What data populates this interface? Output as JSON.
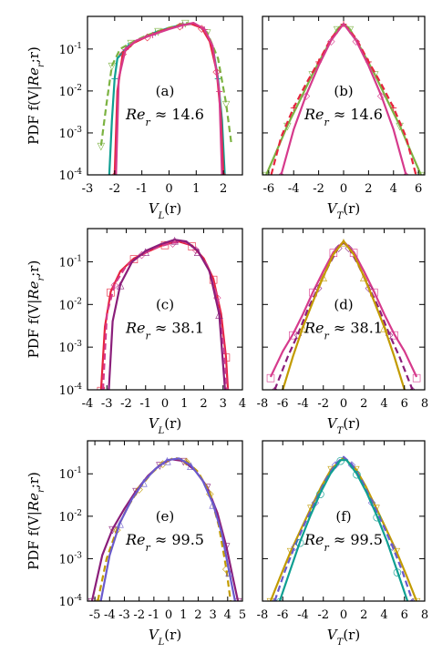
{
  "chart_data": {
    "type": "line",
    "shared_ylabel": "PDF f(V|Re_r;r)",
    "yscale": "log",
    "ylim": [
      0.0001,
      0.6
    ],
    "yticks": [
      {
        "value": 0.1,
        "base": "10",
        "exp": "-1"
      },
      {
        "value": 0.01,
        "base": "10",
        "exp": "-2"
      },
      {
        "value": 0.001,
        "base": "10",
        "exp": "-3"
      },
      {
        "value": 0.0001,
        "base": "10",
        "exp": "-4"
      }
    ],
    "series_colors": [
      "#0f9f92",
      "#7cb342",
      "#e6243e",
      "#d63a8c",
      "#8b1e7a",
      "#c29b00",
      "#6a5acd"
    ],
    "panels": [
      {
        "id": "a",
        "label": "(a)",
        "re": "14.6",
        "xlabel": "V_L(r)",
        "xlim": [
          -3,
          2.7
        ],
        "xticks": [
          -3,
          -2,
          -1,
          0,
          1,
          2
        ],
        "tick_labels": [
          "-3",
          "-2",
          "-1",
          "0",
          "1",
          "2"
        ],
        "marker_symbols": [
          "+",
          "▽",
          "◇"
        ],
        "curves": [
          {
            "x": [
              -2.2,
              -2.1,
              -2.0,
              -1.9,
              -1.5,
              -1.0,
              -0.5,
              0.0,
              0.5,
              0.9,
              1.3,
              1.6,
              1.8,
              1.95,
              2.05
            ],
            "y": [
              0.0001,
              0.002,
              0.02,
              0.06,
              0.12,
              0.18,
              0.25,
              0.32,
              0.38,
              0.4,
              0.3,
              0.12,
              0.02,
              0.002,
              0.0001
            ]
          },
          {
            "x": [
              -2.5,
              -2.3,
              -2.1,
              -1.8,
              -1.4,
              -0.9,
              -0.4,
              0.2,
              0.6,
              1.0,
              1.4,
              1.8,
              2.1,
              2.3
            ],
            "y": [
              0.0005,
              0.005,
              0.04,
              0.1,
              0.14,
              0.2,
              0.27,
              0.35,
              0.42,
              0.38,
              0.25,
              0.06,
              0.005,
              0.0005
            ]
          },
          {
            "x": [
              -2.0,
              -1.9,
              -1.7,
              -1.3,
              -0.8,
              -0.2,
              0.4,
              0.8,
              1.2,
              1.5,
              1.75,
              1.9,
              2.0
            ],
            "y": [
              0.0001,
              0.01,
              0.08,
              0.14,
              0.2,
              0.28,
              0.36,
              0.4,
              0.32,
              0.15,
              0.03,
              0.003,
              0.0001
            ]
          },
          {
            "x": [
              -1.95,
              -1.85,
              -1.6,
              -1.2,
              -0.6,
              0.0,
              0.5,
              0.9,
              1.3,
              1.6,
              1.85,
              1.95
            ],
            "y": [
              0.0001,
              0.02,
              0.1,
              0.16,
              0.22,
              0.3,
              0.37,
              0.42,
              0.3,
              0.12,
              0.01,
              0.0001
            ]
          }
        ]
      },
      {
        "id": "b",
        "label": "(b)",
        "re": "14.6",
        "xlabel": "V_T(r)",
        "xlim": [
          -6.5,
          6.5
        ],
        "xticks": [
          -6,
          -4,
          -2,
          0,
          2,
          4,
          6
        ],
        "tick_labels": [
          "-6",
          "-4",
          "-2",
          "0",
          "2",
          "4",
          "6"
        ],
        "marker_symbols": [
          "▽",
          "+",
          "◇"
        ],
        "curves": [
          {
            "x": [
              -6.2,
              -5.5,
              -4.5,
              -3.5,
              -2.5,
              -1.5,
              -0.5,
              0.0,
              0.5,
              1.5,
              2.5,
              3.5,
              4.5,
              5.5,
              6.2
            ],
            "y": [
              0.0001,
              0.0003,
              0.0015,
              0.006,
              0.025,
              0.09,
              0.3,
              0.4,
              0.3,
              0.09,
              0.025,
              0.006,
              0.0015,
              0.0003,
              0.0001
            ]
          },
          {
            "x": [
              -5.8,
              -5.0,
              -4.0,
              -3.0,
              -2.0,
              -1.0,
              0.0,
              1.0,
              2.0,
              3.0,
              4.0,
              5.0,
              5.8
            ],
            "y": [
              0.0001,
              0.0008,
              0.004,
              0.015,
              0.05,
              0.18,
              0.4,
              0.18,
              0.05,
              0.015,
              0.004,
              0.0008,
              0.0001
            ]
          },
          {
            "x": [
              -5.0,
              -4.0,
              -3.0,
              -2.0,
              -1.0,
              0.0,
              1.0,
              2.0,
              3.0,
              4.0,
              5.0
            ],
            "y": [
              0.0001,
              0.0012,
              0.008,
              0.04,
              0.16,
              0.4,
              0.16,
              0.04,
              0.008,
              0.0012,
              0.0001
            ]
          }
        ]
      },
      {
        "id": "c",
        "label": "(c)",
        "re": "38.1",
        "xlabel": "V_L(r)",
        "xlim": [
          -4,
          4
        ],
        "xticks": [
          -4,
          -3,
          -2,
          -1,
          0,
          1,
          2,
          3,
          4
        ],
        "tick_labels": [
          "-4",
          "-3",
          "-2",
          "-1",
          "0",
          "1",
          "2",
          "3",
          "4"
        ],
        "marker_symbols": [
          "□",
          "◇",
          "△"
        ],
        "curves": [
          {
            "x": [
              -3.3,
              -3.1,
              -2.8,
              -2.3,
              -1.6,
              -0.8,
              0.0,
              0.7,
              1.4,
              2.0,
              2.5,
              2.9,
              3.15,
              3.25
            ],
            "y": [
              0.0001,
              0.003,
              0.02,
              0.06,
              0.12,
              0.18,
              0.26,
              0.3,
              0.24,
              0.12,
              0.04,
              0.006,
              0.0006,
              0.0001
            ]
          },
          {
            "x": [
              -3.2,
              -3.0,
              -2.6,
              -2.0,
              -1.2,
              -0.4,
              0.4,
              1.0,
              1.6,
              2.2,
              2.7,
              3.05,
              3.2
            ],
            "y": [
              0.0001,
              0.006,
              0.03,
              0.08,
              0.15,
              0.22,
              0.28,
              0.3,
              0.2,
              0.08,
              0.015,
              0.001,
              0.0001
            ]
          },
          {
            "x": [
              -2.9,
              -2.7,
              -2.3,
              -1.7,
              -1.0,
              -0.2,
              0.5,
              1.1,
              1.7,
              2.3,
              2.8,
              3.1
            ],
            "y": [
              0.0001,
              0.004,
              0.03,
              0.1,
              0.18,
              0.26,
              0.33,
              0.3,
              0.18,
              0.06,
              0.006,
              0.0001
            ]
          }
        ]
      },
      {
        "id": "d",
        "label": "(d)",
        "re": "38.1",
        "xlabel": "V_T(r)",
        "xlim": [
          -8,
          8
        ],
        "xticks": [
          -8,
          -6,
          -4,
          -2,
          0,
          2,
          4,
          6,
          8
        ],
        "tick_labels": [
          "-8",
          "-6",
          "-4",
          "-2",
          "0",
          "2",
          "4",
          "6",
          "8"
        ],
        "marker_symbols": [
          "□",
          "◇",
          "△"
        ],
        "curves": [
          {
            "x": [
              -7.2,
              -6.0,
              -5.0,
              -4.0,
              -3.0,
              -2.0,
              -1.0,
              0.0,
              1.0,
              2.0,
              3.0,
              4.0,
              5.0,
              6.0,
              7.2
            ],
            "y": [
              0.0002,
              0.0008,
              0.002,
              0.006,
              0.02,
              0.06,
              0.17,
              0.3,
              0.17,
              0.06,
              0.02,
              0.006,
              0.002,
              0.0008,
              0.0002
            ]
          },
          {
            "x": [
              -6.8,
              -5.5,
              -4.5,
              -3.5,
              -2.5,
              -1.5,
              -0.5,
              0.0,
              0.5,
              1.5,
              2.5,
              3.5,
              4.5,
              5.5,
              6.8
            ],
            "y": [
              0.0001,
              0.0006,
              0.002,
              0.008,
              0.025,
              0.08,
              0.22,
              0.28,
              0.22,
              0.08,
              0.025,
              0.008,
              0.002,
              0.0006,
              0.0001
            ]
          },
          {
            "x": [
              -6.0,
              -5.0,
              -4.0,
              -3.0,
              -2.0,
              -1.0,
              0.0,
              1.0,
              2.0,
              3.0,
              4.0,
              5.0,
              6.0
            ],
            "y": [
              0.0001,
              0.0006,
              0.003,
              0.012,
              0.045,
              0.15,
              0.3,
              0.15,
              0.045,
              0.012,
              0.003,
              0.0006,
              0.0001
            ]
          }
        ]
      },
      {
        "id": "e",
        "label": "(e)",
        "re": "99.5",
        "xlabel": "V_L(r)",
        "xlim": [
          -5.5,
          5
        ],
        "xticks": [
          -5,
          -4,
          -3,
          -2,
          -1,
          0,
          1,
          2,
          3,
          4,
          5
        ],
        "tick_labels": [
          "-5",
          "-4",
          "-3",
          "-2",
          "-1",
          "0",
          "1",
          "2",
          "3",
          "4",
          "5"
        ],
        "marker_symbols": [
          "▽",
          "◇",
          "△"
        ],
        "curves": [
          {
            "x": [
              -5.2,
              -4.5,
              -3.8,
              -3.0,
              -2.2,
              -1.4,
              -0.6,
              0.2,
              1.0,
              1.8,
              2.6,
              3.3,
              3.9,
              4.4,
              4.7
            ],
            "y": [
              0.0001,
              0.0012,
              0.005,
              0.015,
              0.04,
              0.09,
              0.16,
              0.22,
              0.2,
              0.12,
              0.05,
              0.012,
              0.002,
              0.0003,
              0.0001
            ]
          },
          {
            "x": [
              -4.8,
              -4.2,
              -3.5,
              -2.8,
              -2.0,
              -1.2,
              -0.4,
              0.4,
              1.2,
              2.0,
              2.8,
              3.4,
              3.9,
              4.2
            ],
            "y": [
              0.0001,
              0.001,
              0.005,
              0.016,
              0.045,
              0.1,
              0.18,
              0.24,
              0.2,
              0.11,
              0.035,
              0.006,
              0.0006,
              0.0001
            ]
          },
          {
            "x": [
              -4.6,
              -4.0,
              -3.3,
              -2.5,
              -1.7,
              -0.9,
              -0.1,
              0.7,
              1.5,
              2.3,
              3.0,
              3.6,
              4.1,
              4.5
            ],
            "y": [
              0.0001,
              0.0012,
              0.007,
              0.025,
              0.065,
              0.13,
              0.21,
              0.23,
              0.16,
              0.07,
              0.02,
              0.004,
              0.0005,
              0.0001
            ]
          }
        ]
      },
      {
        "id": "f",
        "label": "(f)",
        "re": "99.5",
        "xlabel": "V_T(r)",
        "xlim": [
          -8,
          8
        ],
        "xticks": [
          -8,
          -6,
          -4,
          -2,
          0,
          2,
          4,
          6,
          8
        ],
        "tick_labels": [
          "-8",
          "-6",
          "-4",
          "-2",
          "0",
          "2",
          "4",
          "6",
          "8"
        ],
        "marker_symbols": [
          "▽",
          "◇",
          "○"
        ],
        "curves": [
          {
            "x": [
              -7.2,
              -6.2,
              -5.2,
              -4.2,
              -3.2,
              -2.2,
              -1.2,
              0.0,
              1.2,
              2.2,
              3.2,
              4.2,
              5.2,
              6.2,
              7.2
            ],
            "y": [
              0.0001,
              0.0004,
              0.0015,
              0.005,
              0.016,
              0.05,
              0.13,
              0.24,
              0.13,
              0.05,
              0.016,
              0.005,
              0.0015,
              0.0004,
              0.0001
            ]
          },
          {
            "x": [
              -6.8,
              -5.8,
              -4.8,
              -3.8,
              -2.8,
              -1.8,
              -0.8,
              0.0,
              0.8,
              1.8,
              2.8,
              3.8,
              4.8,
              5.8,
              6.8
            ],
            "y": [
              0.0001,
              0.0005,
              0.002,
              0.007,
              0.022,
              0.07,
              0.17,
              0.25,
              0.17,
              0.07,
              0.022,
              0.007,
              0.002,
              0.0005,
              0.0001
            ]
          },
          {
            "x": [
              -6.3,
              -5.3,
              -4.3,
              -3.3,
              -2.3,
              -1.3,
              -0.3,
              0.3,
              1.3,
              2.3,
              3.3,
              4.3,
              5.3,
              6.3
            ],
            "y": [
              0.0001,
              0.0005,
              0.0025,
              0.01,
              0.035,
              0.1,
              0.21,
              0.21,
              0.1,
              0.035,
              0.01,
              0.0025,
              0.0005,
              0.0001
            ]
          }
        ]
      }
    ]
  }
}
